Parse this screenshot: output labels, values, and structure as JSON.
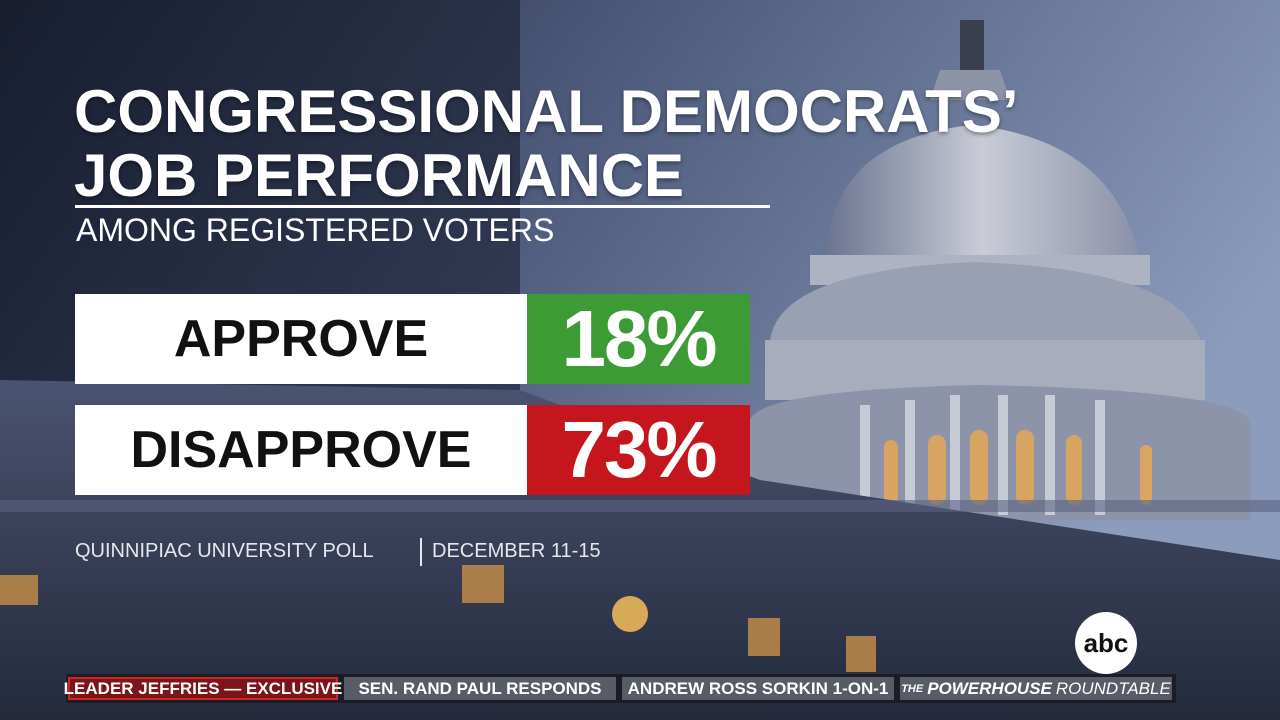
{
  "header": {
    "title_line1": "CONGRESSIONAL DEMOCRATS’",
    "title_line2": "JOB PERFORMANCE",
    "subtitle": "AMONG REGISTERED VOTERS"
  },
  "results": [
    {
      "label": "APPROVE",
      "value": "18%"
    },
    {
      "label": "DISAPPROVE",
      "value": "73%"
    }
  ],
  "source": {
    "poll": "QUINNIPIAC UNIVERSITY POLL",
    "dates": "DECEMBER 11-15"
  },
  "logo": "abc",
  "ticker": [
    "LEADER JEFFRIES — EXCLUSIVE",
    "SEN. RAND PAUL RESPONDS",
    "ANDREW ROSS SORKIN 1-ON-1"
  ],
  "powerhouse": [
    "THE",
    "POWERHOUSE",
    "ROUNDTABLE"
  ]
}
